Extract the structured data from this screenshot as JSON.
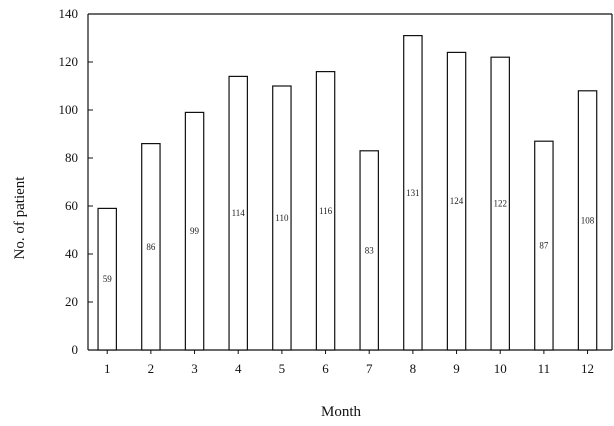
{
  "chart_data": {
    "type": "bar",
    "title": "",
    "xlabel": "Month",
    "ylabel": "No. of patient",
    "categories": [
      "1",
      "2",
      "3",
      "4",
      "5",
      "6",
      "7",
      "8",
      "9",
      "10",
      "11",
      "12"
    ],
    "values": [
      59,
      86,
      99,
      114,
      110,
      116,
      83,
      131,
      124,
      122,
      87,
      108
    ],
    "data_labels": [
      "59",
      "86",
      "99",
      "114",
      "110",
      "116",
      "83",
      "131",
      "124",
      "122",
      "87",
      "108"
    ],
    "ylim": [
      0,
      140
    ],
    "yticks": [
      "0",
      "20",
      "40",
      "60",
      "80",
      "100",
      "120",
      "140"
    ],
    "grid": false,
    "legend": "none",
    "colors": {
      "bar_fill": "#ffffff",
      "bar_stroke": "#111111",
      "axis": "#111111"
    }
  }
}
